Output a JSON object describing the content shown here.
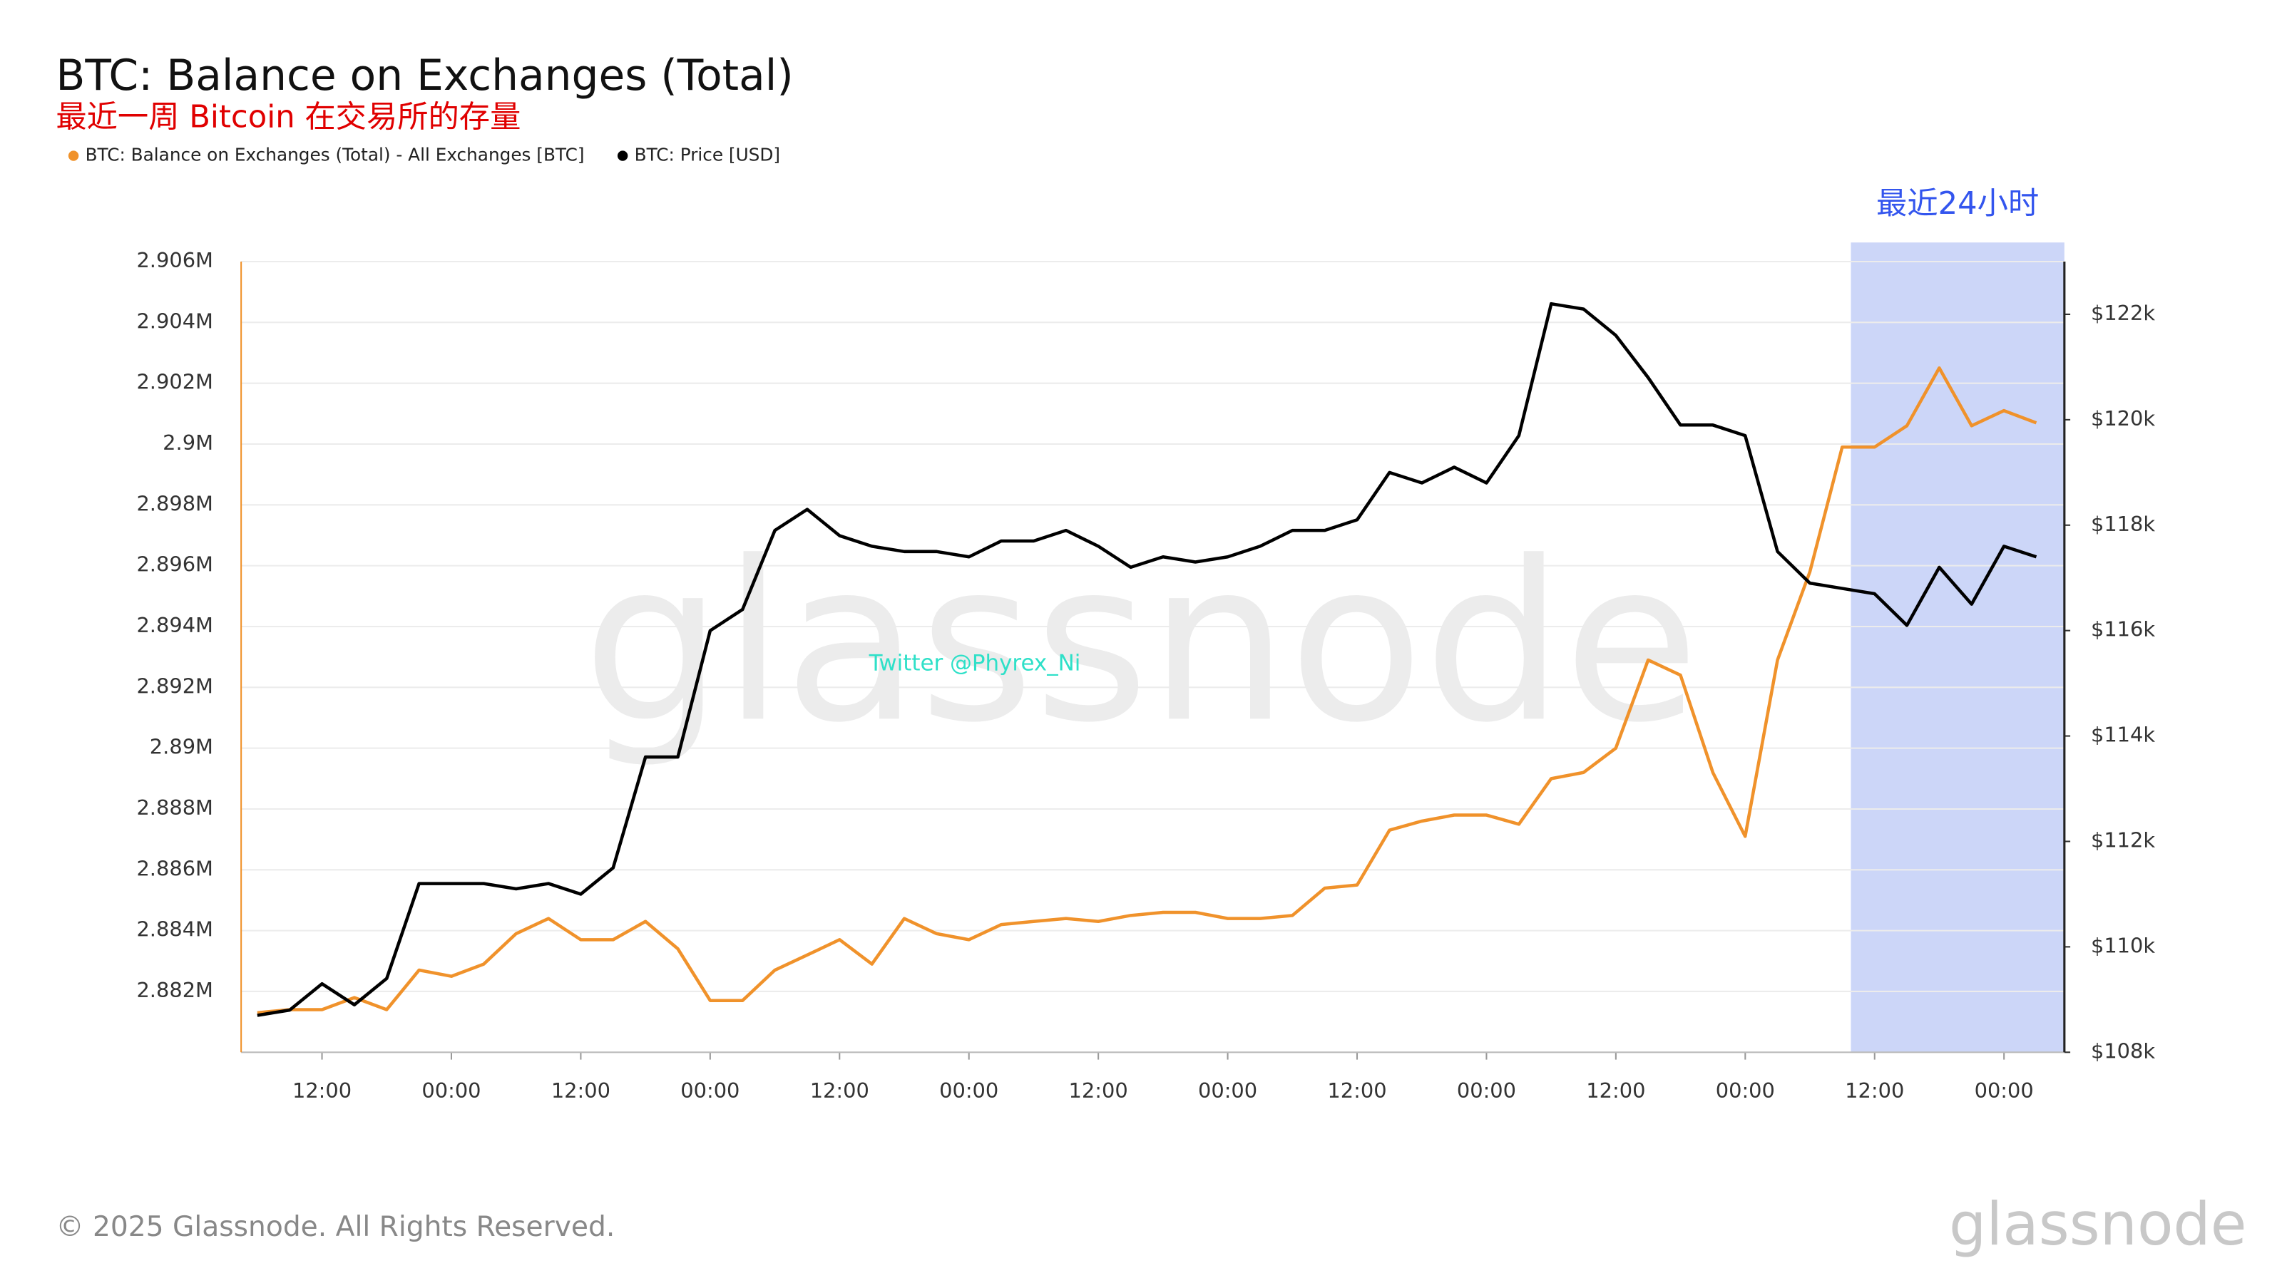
{
  "chart_data": {
    "type": "line",
    "title": "BTC: Balance on Exchanges (Total)",
    "subtitle": "最近一周 Bitcoin 在交易所的存量",
    "x": [
      6,
      9,
      12,
      15,
      18,
      21,
      24,
      27,
      30,
      33,
      36,
      39,
      42,
      45,
      48,
      51,
      54,
      57,
      60,
      63,
      66,
      69,
      72,
      75,
      78,
      81,
      84,
      87,
      90,
      93,
      96,
      99,
      102,
      105,
      108,
      111,
      114,
      117,
      120,
      123,
      126,
      129,
      132,
      135,
      138,
      141,
      144,
      147,
      150,
      153,
      156,
      159,
      162,
      165,
      168,
      171
    ],
    "xlim": [
      4.5,
      173.6
    ],
    "xticks": [
      {
        "value": 12,
        "label": "12:00"
      },
      {
        "value": 24,
        "label": "00:00"
      },
      {
        "value": 36,
        "label": "12:00"
      },
      {
        "value": 48,
        "label": "00:00"
      },
      {
        "value": 60,
        "label": "12:00"
      },
      {
        "value": 72,
        "label": "00:00"
      },
      {
        "value": 84,
        "label": "12:00"
      },
      {
        "value": 96,
        "label": "00:00"
      },
      {
        "value": 108,
        "label": "12:00"
      },
      {
        "value": 120,
        "label": "00:00"
      },
      {
        "value": 132,
        "label": "12:00"
      },
      {
        "value": 144,
        "label": "00:00"
      },
      {
        "value": 156,
        "label": "12:00"
      },
      {
        "value": 168,
        "label": "00:00"
      }
    ],
    "ylim": [
      2880000,
      2906000
    ],
    "yticks": [
      {
        "value": 2882000,
        "label": "2.882M"
      },
      {
        "value": 2884000,
        "label": "2.884M"
      },
      {
        "value": 2886000,
        "label": "2.886M"
      },
      {
        "value": 2888000,
        "label": "2.888M"
      },
      {
        "value": 2890000,
        "label": "2.89M"
      },
      {
        "value": 2892000,
        "label": "2.892M"
      },
      {
        "value": 2894000,
        "label": "2.894M"
      },
      {
        "value": 2896000,
        "label": "2.896M"
      },
      {
        "value": 2898000,
        "label": "2.898M"
      },
      {
        "value": 2900000,
        "label": "2.9M"
      },
      {
        "value": 2902000,
        "label": "2.902M"
      },
      {
        "value": 2904000,
        "label": "2.904M"
      },
      {
        "value": 2906000,
        "label": "2.906M"
      }
    ],
    "y2lim": [
      108000,
      123000
    ],
    "y2ticks": [
      {
        "value": 108000,
        "label": "$108k"
      },
      {
        "value": 110000,
        "label": "$110k"
      },
      {
        "value": 112000,
        "label": "$112k"
      },
      {
        "value": 114000,
        "label": "$114k"
      },
      {
        "value": 116000,
        "label": "$116k"
      },
      {
        "value": 118000,
        "label": "$118k"
      },
      {
        "value": 120000,
        "label": "$120k"
      },
      {
        "value": 122000,
        "label": "$122k"
      }
    ],
    "grid": true,
    "series": [
      {
        "name": "BTC: Balance on Exchanges (Total) - All Exchanges [BTC]",
        "color": "#f0922b",
        "values": [
          2881300,
          2881400,
          2881400,
          2881800,
          2881400,
          2882700,
          2882500,
          2882900,
          2883900,
          2884400,
          2883700,
          2883700,
          2884300,
          2883400,
          2881700,
          2881700,
          2882700,
          2883200,
          2883700,
          2882900,
          2884400,
          2883900,
          2883700,
          2884200,
          2884300,
          2884400,
          2884300,
          2884500,
          2884600,
          2884600,
          2884400,
          2884400,
          2884500,
          2885400,
          2885500,
          2887300,
          2887600,
          2887800,
          2887800,
          2887500,
          2889000,
          2889200,
          2890000,
          2892900,
          2892400,
          2889200,
          2887100,
          2892900,
          2895800,
          2899900,
          2899900,
          2900600,
          2902500,
          2900600,
          2901100,
          2900700
        ]
      },
      {
        "name": "BTC: Price [USD]",
        "color": "#000000",
        "axis": "y2",
        "values": [
          108700,
          108800,
          109300,
          108900,
          109400,
          111200,
          111200,
          111200,
          111100,
          111200,
          111000,
          111500,
          113600,
          113600,
          116000,
          116400,
          117900,
          118300,
          117800,
          117600,
          117500,
          117500,
          117400,
          117700,
          117700,
          117900,
          117600,
          117200,
          117400,
          117300,
          117400,
          117600,
          117900,
          117900,
          118100,
          119000,
          118800,
          119100,
          118800,
          119700,
          122200,
          122100,
          121600,
          120800,
          119900,
          119900,
          119700,
          117500,
          116900,
          116800,
          116700,
          116100,
          117200,
          116500,
          117600,
          117400
        ]
      }
    ],
    "annotations": [
      {
        "text": "最近24小时",
        "xlim": [
          153.8,
          173.6
        ],
        "color": "#3355ee"
      },
      {
        "text": "Twitter @Phyrex_Ni"
      }
    ],
    "watermark": "glassnode",
    "footer": "© 2025 Glassnode. All Rights Reserved.",
    "logo": "glassnode"
  }
}
